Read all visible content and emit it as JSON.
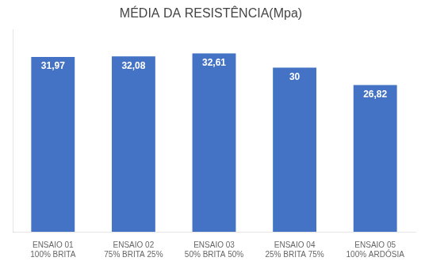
{
  "chart_data": {
    "type": "bar",
    "title": "MÉDIA DA RESISTÊNCIA(Mpa)",
    "categories": [
      [
        "ENSAIO 01",
        "100% BRITA"
      ],
      [
        "ENSAIO 02",
        "75% BRITA 25%"
      ],
      [
        "ENSAIO 03",
        "50% BRITA 50%"
      ],
      [
        "ENSAIO 04",
        "25% BRITA 75%"
      ],
      [
        "ENSAIO 05",
        "100% ARDÓSIA"
      ]
    ],
    "values": [
      31.97,
      32.08,
      32.61,
      30.0,
      26.82
    ],
    "value_labels": [
      "31,97",
      "32,08",
      "32,61",
      "30",
      "26,82"
    ],
    "data_labels": true,
    "color": "#4472C4",
    "ylim": [
      0,
      37
    ],
    "grid": false,
    "tick_labels": "x"
  }
}
